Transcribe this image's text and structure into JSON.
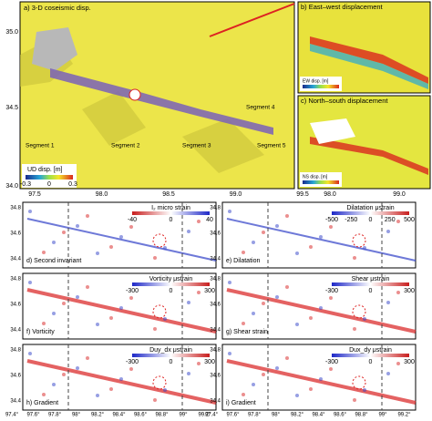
{
  "panel_a": {
    "title": "a) 3-D coseismic disp.",
    "segments": [
      "Segment 1",
      "Segment 2",
      "Segment 3",
      "Segment 4",
      "Segment 5"
    ],
    "colorbar_label": "UD disp. [m]",
    "colorbar_ticks": [
      "-0.3",
      "0",
      "0.3"
    ],
    "yticks": [
      "35.0",
      "34.5",
      "34.0"
    ],
    "xticks": [
      "97.5",
      "98.0",
      "98.5",
      "99.0",
      "99.5"
    ]
  },
  "panel_b": {
    "title": "b) East–west displacement",
    "colorbar_label": "EW disp. [m]"
  },
  "panel_c": {
    "title": "c) North–south displacement",
    "colorbar_label": "NS disp. [m]",
    "xticks": [
      "98.0",
      "99.0"
    ]
  },
  "strain_panels": [
    {
      "label": "d) Second invariant",
      "colorbar_label": "I₂ micro strain",
      "colorbar_ticks": [
        "-40",
        "0",
        "40"
      ]
    },
    {
      "label": "e) Dilatation",
      "colorbar_label": "Dilatation μstrain",
      "colorbar_ticks": [
        "-500",
        "-250",
        "0",
        "250",
        "500"
      ]
    },
    {
      "label": "f) Vorticity",
      "colorbar_label": "Vorticity μstrain",
      "colorbar_ticks": [
        "-300",
        "0",
        "300"
      ]
    },
    {
      "label": "g) Shear strain",
      "colorbar_label": "Shear μstrain",
      "colorbar_ticks": [
        "-300",
        "0",
        "300"
      ]
    },
    {
      "label": "h) Gradient",
      "colorbar_label": "Duy_dx μstrain",
      "colorbar_ticks": [
        "-300",
        "0",
        "300"
      ]
    },
    {
      "label": "i) Gradient",
      "colorbar_label": "Dux_dy μstrain",
      "colorbar_ticks": [
        "-300",
        "0",
        "300"
      ]
    }
  ],
  "strain_yticks": [
    "34.8",
    "34.6",
    "34.4"
  ],
  "strain_xticks": [
    "97.4°",
    "97.6°",
    "97.8°",
    "98°",
    "98.2°",
    "98.4°",
    "98.6°",
    "98.8°",
    "99°",
    "99.2°"
  ]
}
